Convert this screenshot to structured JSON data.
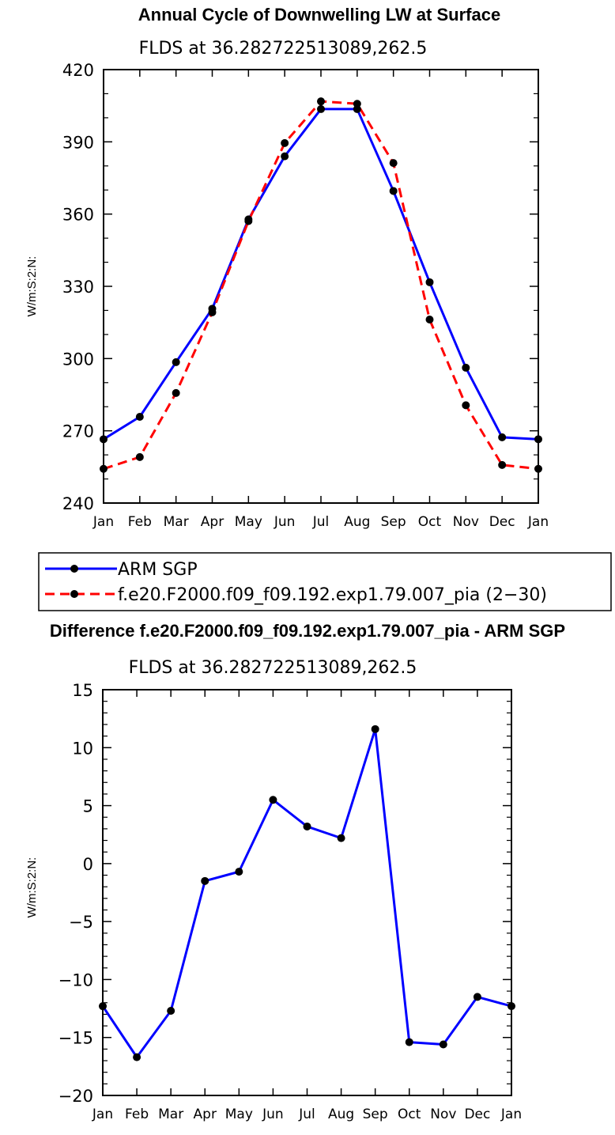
{
  "chart_data": [
    {
      "type": "line",
      "title": "Annual Cycle of Downwelling LW at Surface",
      "subtitle": "FLDS at 36.282722513089,262.5",
      "ylabel": "W/m:S:2:N:",
      "xlabel": "",
      "categories": [
        "Jan",
        "Feb",
        "Mar",
        "Apr",
        "May",
        "Jun",
        "Jul",
        "Aug",
        "Sep",
        "Oct",
        "Nov",
        "Dec",
        "Jan"
      ],
      "ylim": [
        240,
        420
      ],
      "yticks": [
        240,
        270,
        300,
        330,
        360,
        390,
        420
      ],
      "series": [
        {
          "name": "ARM SGP",
          "color": "#0000ff",
          "dash": "solid",
          "values": [
            266.5,
            275.8,
            298.5,
            320.7,
            357.8,
            384.0,
            403.6,
            403.6,
            369.6,
            331.7,
            296.2,
            267.3,
            266.5
          ]
        },
        {
          "name": "f.e20.F2000.f09_f09.192.exp1.79.007_pia (2−30)",
          "color": "#ff0000",
          "dash": "dashed",
          "values": [
            254.2,
            259.1,
            285.7,
            319.2,
            357.1,
            389.5,
            406.8,
            405.8,
            381.2,
            316.2,
            280.6,
            255.8,
            254.2
          ]
        }
      ],
      "legend": "below"
    },
    {
      "type": "line",
      "title": "Difference f.e20.F2000.f09_f09.192.exp1.79.007_pia - ARM SGP",
      "subtitle": "FLDS at 36.282722513089,262.5",
      "ylabel": "W/m:S:2:N:",
      "xlabel": "",
      "categories": [
        "Jan",
        "Feb",
        "Mar",
        "Apr",
        "May",
        "Jun",
        "Jul",
        "Aug",
        "Sep",
        "Oct",
        "Nov",
        "Dec",
        "Jan"
      ],
      "ylim": [
        -20,
        15
      ],
      "yticks": [
        -20,
        -15,
        -10,
        -5,
        0,
        5,
        10,
        15
      ],
      "series": [
        {
          "name": "Difference",
          "color": "#0000ff",
          "dash": "solid",
          "values": [
            -12.3,
            -16.7,
            -12.7,
            -1.5,
            -0.7,
            5.5,
            3.2,
            2.2,
            11.6,
            -15.4,
            -15.6,
            -11.5,
            -12.3
          ]
        }
      ]
    }
  ]
}
